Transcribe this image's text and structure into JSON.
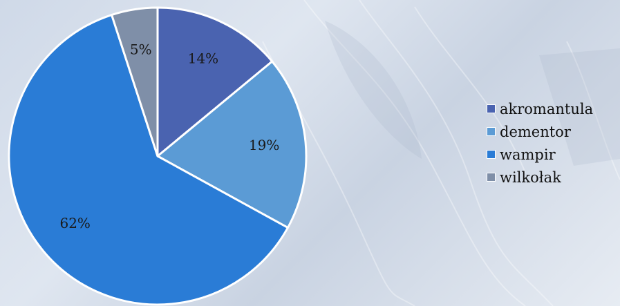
{
  "chart_data": {
    "type": "pie",
    "categories": [
      "akromantula",
      "dementor",
      "wampir",
      "wilkołak"
    ],
    "values": [
      14,
      19,
      62,
      5
    ],
    "labels": [
      "14%",
      "19%",
      "62%",
      "5%"
    ],
    "colors": [
      "#4a63b0",
      "#5b9bd5",
      "#2a7cd6",
      "#7f8fa8"
    ],
    "slice_border_color": "#ffffff",
    "start_angle_deg": 0,
    "direction": "clockwise",
    "legend_position": "right",
    "title": ""
  },
  "legend": {
    "items": [
      {
        "label": "akromantula",
        "color": "#4a63b0"
      },
      {
        "label": "dementor",
        "color": "#5b9bd5"
      },
      {
        "label": "wampir",
        "color": "#2a7cd6"
      },
      {
        "label": "wilkołak",
        "color": "#7f8fa8"
      }
    ]
  }
}
